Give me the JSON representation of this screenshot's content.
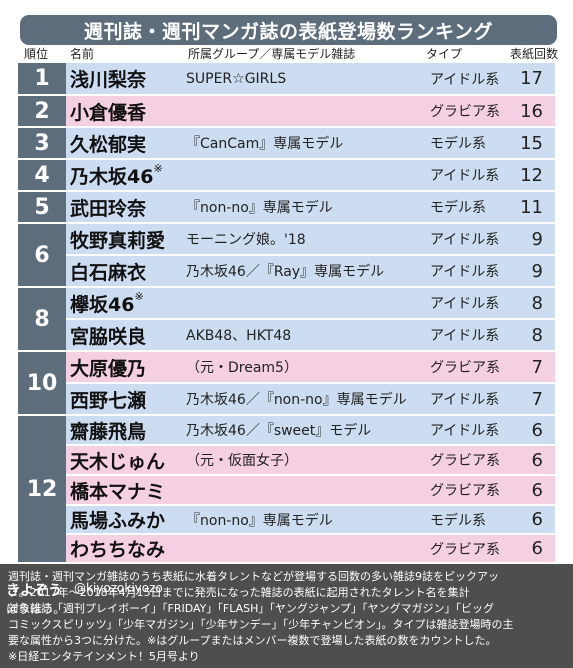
{
  "title": "週刊誌・週刊マンガ誌の表紙登場数ランキング",
  "columns": {
    "rank": "順位",
    "name": "名前",
    "group": "所属グループ／専属モデル雑誌",
    "type": "タイプ",
    "count": "表紙回数"
  },
  "rank_groups": [
    "1",
    "2",
    "3",
    "4",
    "5",
    "6",
    "8",
    "10",
    "12"
  ],
  "rows": [
    {
      "name": "浅川梨奈",
      "mark": "",
      "group": "SUPER☆GIRLS",
      "type": "アイドル系",
      "count": "17",
      "color": "blue"
    },
    {
      "name": "小倉優香",
      "mark": "",
      "group": "",
      "type": "グラビア系",
      "count": "16",
      "color": "pink"
    },
    {
      "name": "久松郁実",
      "mark": "",
      "group": "『CanCam』専属モデル",
      "type": "モデル系",
      "count": "15",
      "color": "blue"
    },
    {
      "name": "乃木坂46",
      "mark": "※",
      "group": "",
      "type": "アイドル系",
      "count": "12",
      "color": "blue"
    },
    {
      "name": "武田玲奈",
      "mark": "",
      "group": "『non-no』専属モデル",
      "type": "モデル系",
      "count": "11",
      "color": "blue"
    },
    {
      "name": "牧野真莉愛",
      "mark": "",
      "group": "モーニング娘。'18",
      "type": "アイドル系",
      "count": "9",
      "color": "blue"
    },
    {
      "name": "白石麻衣",
      "mark": "",
      "group": "乃木坂46／『Ray』専属モデル",
      "type": "アイドル系",
      "count": "9",
      "color": "blue"
    },
    {
      "name": "欅坂46",
      "mark": "※",
      "group": "",
      "type": "アイドル系",
      "count": "8",
      "color": "blue"
    },
    {
      "name": "宮脇咲良",
      "mark": "",
      "group": "AKB48、HKT48",
      "type": "アイドル系",
      "count": "8",
      "color": "blue"
    },
    {
      "name": "大原優乃",
      "mark": "",
      "group": "（元・Dream5）",
      "type": "グラビア系",
      "count": "7",
      "color": "pink"
    },
    {
      "name": "西野七瀬",
      "mark": "",
      "group": "乃木坂46／『non-no』専属モデル",
      "type": "アイドル系",
      "count": "7",
      "color": "blue"
    },
    {
      "name": "齋藤飛鳥",
      "mark": "",
      "group": "乃木坂46／『sweet』モデル",
      "type": "アイドル系",
      "count": "6",
      "color": "blue"
    },
    {
      "name": "天木じゅん",
      "mark": "",
      "group": "（元・仮面女子）",
      "type": "グラビア系",
      "count": "6",
      "color": "pink"
    },
    {
      "name": "橋本マナミ",
      "mark": "",
      "group": "",
      "type": "グラビア系",
      "count": "6",
      "color": "pink"
    },
    {
      "name": "馬場ふみか",
      "mark": "",
      "group": "『non-no』専属モデル",
      "type": "モデル系",
      "count": "6",
      "color": "blue"
    },
    {
      "name": "わちちなみ",
      "mark": "",
      "group": "",
      "type": "グラビア系",
      "count": "6",
      "color": "pink"
    }
  ],
  "notes": [
    "週刊誌・週刊マンガ雑誌のうち表紙に水着タレントなどが登場する回数の多い雑誌9誌をピックアッ",
    "プ。2017年〜2018年4月15日までに発売になった雑誌の表紙に起用されたタレント名を集計",
    "対象雑誌「週刊プレイボーイ」「FRIDAY」「FLASH」「ヤングジャンプ」「ヤングマガジン」「ビッグ",
    "コミックスピリッツ」「少年マガジン」「少年サンデー」「少年チャンピオン」。タイプは雑誌登場時の主",
    "要な属性から3つに分けた。※はグループまたはメンバー複数で登場した表紙の数をカウントした。",
    "※日経エンタテインメント！5月号より"
  ],
  "watermark": {
    "name": "きよぞう",
    "handle": "@kiyozokiyozo",
    "sub": "ほうほう。"
  }
}
